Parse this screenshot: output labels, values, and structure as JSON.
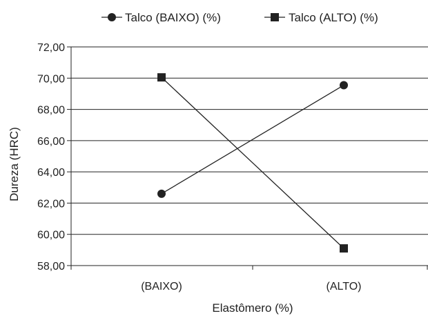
{
  "chart_data": {
    "type": "line",
    "categories": [
      "(BAIXO)",
      "(ALTO)"
    ],
    "series": [
      {
        "name": "Talco (BAIXO) (%)",
        "marker": "circle",
        "values": [
          62.6,
          69.55
        ]
      },
      {
        "name": "Talco (ALTO) (%)",
        "marker": "square",
        "values": [
          70.05,
          59.1
        ]
      }
    ],
    "xlabel": "Elastômero (%)",
    "ylabel": "Dureza (HRC)",
    "ylim": [
      58,
      72
    ],
    "yticks": [
      58,
      60,
      62,
      64,
      66,
      68,
      70,
      72
    ],
    "ytick_labels": [
      "58,00",
      "60,00",
      "62,00",
      "64,00",
      "66,00",
      "68,00",
      "70,00",
      "72,00"
    ],
    "grid": "horizontal",
    "legend_position": "top",
    "line_color": "#222222"
  }
}
